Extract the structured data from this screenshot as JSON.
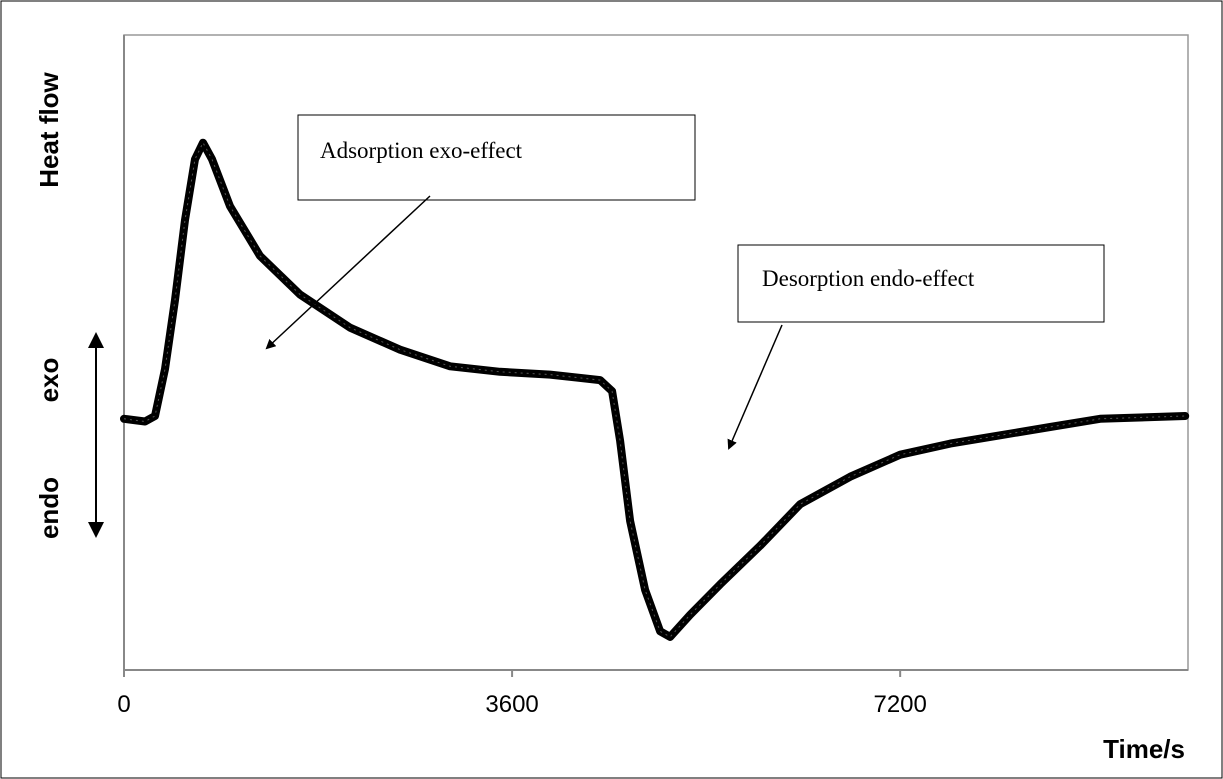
{
  "chart_data": {
    "type": "line",
    "color": "#000000",
    "x": [
      0,
      195,
      288,
      380,
      473,
      566,
      659,
      733,
      816,
      983,
      1262,
      1633,
      2097,
      2561,
      3025,
      3488,
      3952,
      4416,
      4528,
      4602,
      4695,
      4834,
      4973,
      5066,
      5251,
      5530,
      5901,
      6272,
      6736,
      7200,
      7664,
      8127,
      8591,
      9055,
      9844
    ],
    "values": [
      0.01,
      0,
      0.02,
      0.19,
      0.44,
      0.73,
      0.95,
      1.01,
      0.95,
      0.78,
      0.6,
      0.46,
      0.34,
      0.26,
      0.2,
      0.18,
      0.17,
      0.15,
      0.11,
      -0.07,
      -0.36,
      -0.61,
      -0.76,
      -0.78,
      -0.7,
      -0.59,
      -0.45,
      -0.3,
      -0.2,
      -0.12,
      -0.08,
      -0.05,
      -0.02,
      0.01,
      0.02
    ],
    "xlim": [
      0,
      9870
    ],
    "xticks": [
      0,
      3600,
      7200
    ],
    "ylim": [
      -0.9,
      1.4
    ],
    "x_label": "Time/s",
    "y_label": "Heat flow",
    "exo_label": "exo",
    "endo_label": "endo",
    "annotations": [
      "Adsorption exo-effect",
      "Desorption endo-effect"
    ]
  }
}
